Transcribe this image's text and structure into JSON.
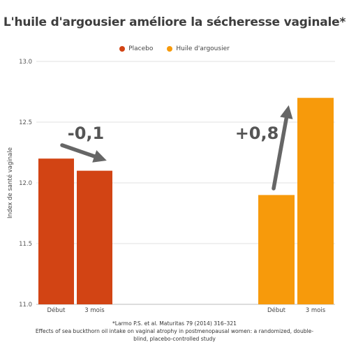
{
  "title": "L'huile d'argousier améliore la sécheresse vaginale*",
  "legend": [
    {
      "name": "Placebo",
      "color": "#D24414"
    },
    {
      "name": "Huile d'argousier",
      "color": "#F79A0B"
    }
  ],
  "chart_data": {
    "type": "bar",
    "ylabel": "Index de santé vaginale",
    "ylim": [
      11.0,
      13.0
    ],
    "yticks": [
      "11.0",
      "11.5",
      "12.0",
      "12.5",
      "13.0"
    ],
    "grid": true,
    "legend_position": "top-center",
    "series": [
      {
        "name": "Placebo",
        "color": "#D24414",
        "categories": [
          "Début",
          "3 mois"
        ],
        "values": [
          12.2,
          12.1
        ],
        "annotation": "-0,1"
      },
      {
        "name": "Huile d'argousier",
        "color": "#F79A0B",
        "categories": [
          "Début",
          "3 mois"
        ],
        "values": [
          11.9,
          12.7
        ],
        "annotation": "+0,8"
      }
    ]
  },
  "footnote": {
    "line1": "*Larmo P.S. et al. Maturitas 79 (2014) 316–321",
    "line2": "Effects of sea buckthorn oil intake on vaginal atrophy in postmenopausal women: a randomized, double-",
    "line3": "blind, placebo-controlled study"
  }
}
